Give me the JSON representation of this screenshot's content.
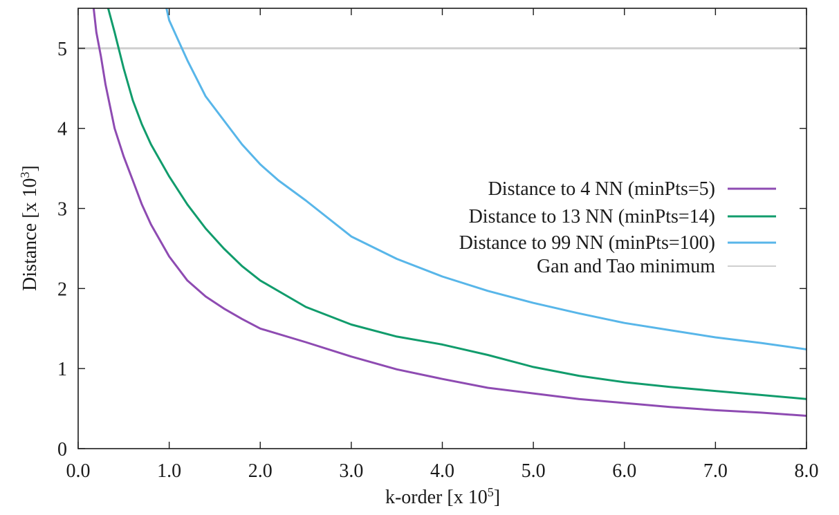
{
  "chart_data": {
    "type": "line",
    "xlabel": "k-order [x 10",
    "xlabel_exp": "5",
    "xlabel_close": "]",
    "ylabel": "Distance [x 10",
    "ylabel_exp": "3",
    "ylabel_close": "]",
    "xlim": [
      0,
      8
    ],
    "ylim": [
      0,
      5.5
    ],
    "xticks": [
      "0.0",
      "1.0",
      "2.0",
      "3.0",
      "4.0",
      "5.0",
      "6.0",
      "7.0",
      "8.0"
    ],
    "yticks": [
      "0",
      "1",
      "2",
      "3",
      "4",
      "5"
    ],
    "grid": false,
    "legend_position": "right",
    "series": [
      {
        "name": "Distance to 4 NN (minPts=5)",
        "color": "#8e4bb2",
        "x": [
          0.17,
          0.2,
          0.25,
          0.3,
          0.4,
          0.5,
          0.6,
          0.7,
          0.8,
          1.0,
          1.2,
          1.4,
          1.6,
          1.8,
          2.0,
          2.5,
          3.0,
          3.5,
          4.0,
          4.5,
          5.0,
          5.5,
          6.0,
          6.5,
          7.0,
          7.5,
          8.0
        ],
        "y": [
          5.5,
          5.2,
          4.9,
          4.55,
          4.0,
          3.65,
          3.35,
          3.05,
          2.8,
          2.4,
          2.1,
          1.9,
          1.75,
          1.62,
          1.5,
          1.33,
          1.15,
          0.99,
          0.87,
          0.76,
          0.69,
          0.62,
          0.57,
          0.52,
          0.48,
          0.45,
          0.41
        ]
      },
      {
        "name": "Distance to 13 NN (minPts=14)",
        "color": "#119c6c",
        "x": [
          0.33,
          0.4,
          0.5,
          0.6,
          0.7,
          0.8,
          1.0,
          1.2,
          1.4,
          1.6,
          1.8,
          2.0,
          2.5,
          3.0,
          3.5,
          4.0,
          4.5,
          5.0,
          5.5,
          6.0,
          6.5,
          7.0,
          7.5,
          8.0
        ],
        "y": [
          5.5,
          5.2,
          4.75,
          4.35,
          4.05,
          3.8,
          3.4,
          3.05,
          2.75,
          2.5,
          2.28,
          2.1,
          1.77,
          1.55,
          1.4,
          1.3,
          1.17,
          1.02,
          0.91,
          0.83,
          0.77,
          0.72,
          0.67,
          0.62
        ]
      },
      {
        "name": "Distance to 99 NN (minPts=100)",
        "color": "#58b6e9",
        "x": [
          0.97,
          1.0,
          1.2,
          1.4,
          1.6,
          1.8,
          2.0,
          2.2,
          2.5,
          3.0,
          3.5,
          4.0,
          4.5,
          5.0,
          5.5,
          6.0,
          6.5,
          7.0,
          7.5,
          8.0
        ],
        "y": [
          5.5,
          5.35,
          4.85,
          4.4,
          4.1,
          3.8,
          3.55,
          3.35,
          3.1,
          2.65,
          2.37,
          2.15,
          1.97,
          1.82,
          1.69,
          1.57,
          1.48,
          1.39,
          1.32,
          1.24
        ]
      },
      {
        "name": "Gan and Tao minimum",
        "color": "#cfcfcf",
        "x": [
          0,
          8
        ],
        "y": [
          5,
          5
        ]
      }
    ]
  }
}
